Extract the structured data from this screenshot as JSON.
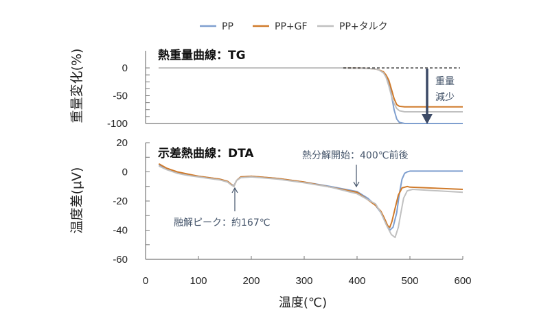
{
  "chart_data": [
    {
      "type": "line",
      "title": "熱重量曲線：TG",
      "ylabel": "重量変化(%)",
      "xlim": [
        0,
        600
      ],
      "ylim": [
        -100,
        0
      ],
      "yticks": [
        0,
        -50,
        -100
      ],
      "legend_position": "top",
      "series": [
        {
          "name": "PP",
          "color": "#7f9fcf",
          "points": [
            [
              25,
              0
            ],
            [
              100,
              0
            ],
            [
              200,
              0
            ],
            [
              300,
              0
            ],
            [
              370,
              0
            ],
            [
              410,
              -0.5
            ],
            [
              430,
              -1.5
            ],
            [
              440,
              -3
            ],
            [
              450,
              -8
            ],
            [
              455,
              -15
            ],
            [
              460,
              -28
            ],
            [
              465,
              -48
            ],
            [
              470,
              -75
            ],
            [
              475,
              -92
            ],
            [
              480,
              -98
            ],
            [
              490,
              -100
            ],
            [
              600,
              -100
            ]
          ]
        },
        {
          "name": "PP+GF",
          "color": "#d07a2a",
          "points": [
            [
              25,
              0
            ],
            [
              100,
              0
            ],
            [
              200,
              0
            ],
            [
              300,
              0
            ],
            [
              370,
              0
            ],
            [
              410,
              -0.5
            ],
            [
              430,
              -1.5
            ],
            [
              440,
              -3
            ],
            [
              450,
              -7
            ],
            [
              455,
              -13
            ],
            [
              460,
              -22
            ],
            [
              465,
              -38
            ],
            [
              470,
              -55
            ],
            [
              475,
              -66
            ],
            [
              480,
              -69
            ],
            [
              490,
              -70
            ],
            [
              600,
              -70
            ]
          ]
        },
        {
          "name": "PP+タルク",
          "color": "#c0c0c0",
          "points": [
            [
              25,
              0
            ],
            [
              100,
              0
            ],
            [
              200,
              0
            ],
            [
              300,
              0
            ],
            [
              370,
              0
            ],
            [
              410,
              -0.5
            ],
            [
              430,
              -1.5
            ],
            [
              440,
              -3
            ],
            [
              450,
              -9
            ],
            [
              455,
              -17
            ],
            [
              460,
              -32
            ],
            [
              465,
              -50
            ],
            [
              470,
              -64
            ],
            [
              475,
              -73
            ],
            [
              480,
              -77
            ],
            [
              490,
              -79
            ],
            [
              600,
              -79
            ]
          ]
        }
      ],
      "annotations": {
        "loss_label_1": "重量",
        "loss_label_2": "減少"
      }
    },
    {
      "type": "line",
      "title": "示差熱曲線：DTA",
      "xlabel": "温度(℃)",
      "ylabel": "温度差(μV)",
      "xlim": [
        0,
        600
      ],
      "ylim": [
        -60,
        20
      ],
      "xticks": [
        0,
        100,
        200,
        300,
        400,
        500,
        600
      ],
      "yticks": [
        20,
        0,
        -20,
        -40,
        -60
      ],
      "series": [
        {
          "name": "PP",
          "color": "#7f9fcf",
          "points": [
            [
              25,
              5
            ],
            [
              40,
              2
            ],
            [
              60,
              -0.5
            ],
            [
              80,
              -2
            ],
            [
              100,
              -3
            ],
            [
              120,
              -4
            ],
            [
              140,
              -5
            ],
            [
              155,
              -6.5
            ],
            [
              162,
              -8.5
            ],
            [
              167,
              -9.5
            ],
            [
              172,
              -6
            ],
            [
              180,
              -3.5
            ],
            [
              200,
              -3
            ],
            [
              250,
              -4.5
            ],
            [
              300,
              -7
            ],
            [
              350,
              -10
            ],
            [
              400,
              -13.5
            ],
            [
              420,
              -18
            ],
            [
              435,
              -23
            ],
            [
              445,
              -28
            ],
            [
              455,
              -35
            ],
            [
              462,
              -40
            ],
            [
              468,
              -38
            ],
            [
              475,
              -28
            ],
            [
              480,
              -15
            ],
            [
              485,
              -5
            ],
            [
              490,
              -1
            ],
            [
              495,
              0
            ],
            [
              500,
              0.5
            ],
            [
              600,
              0.5
            ]
          ]
        },
        {
          "name": "PP+GF",
          "color": "#d07a2a",
          "points": [
            [
              25,
              5.5
            ],
            [
              40,
              2.5
            ],
            [
              60,
              0
            ],
            [
              80,
              -1.5
            ],
            [
              100,
              -3
            ],
            [
              120,
              -4
            ],
            [
              140,
              -5
            ],
            [
              155,
              -6.5
            ],
            [
              162,
              -8.5
            ],
            [
              167,
              -10
            ],
            [
              172,
              -6
            ],
            [
              180,
              -3.5
            ],
            [
              200,
              -3
            ],
            [
              250,
              -4.5
            ],
            [
              300,
              -7
            ],
            [
              350,
              -10.5
            ],
            [
              400,
              -14
            ],
            [
              420,
              -19
            ],
            [
              435,
              -23
            ],
            [
              445,
              -27
            ],
            [
              452,
              -32
            ],
            [
              458,
              -37
            ],
            [
              462,
              -38
            ],
            [
              466,
              -34
            ],
            [
              472,
              -25
            ],
            [
              478,
              -16
            ],
            [
              485,
              -11
            ],
            [
              495,
              -10
            ],
            [
              500,
              -10.5
            ],
            [
              600,
              -12
            ]
          ]
        },
        {
          "name": "PP+タルク",
          "color": "#c0c0c0",
          "points": [
            [
              25,
              4
            ],
            [
              40,
              1.5
            ],
            [
              60,
              -1
            ],
            [
              80,
              -2.5
            ],
            [
              100,
              -3.5
            ],
            [
              120,
              -4.5
            ],
            [
              140,
              -5.5
            ],
            [
              155,
              -7
            ],
            [
              162,
              -9
            ],
            [
              167,
              -10
            ],
            [
              172,
              -6
            ],
            [
              180,
              -4
            ],
            [
              200,
              -3.5
            ],
            [
              250,
              -5
            ],
            [
              300,
              -7.5
            ],
            [
              350,
              -10.5
            ],
            [
              400,
              -15
            ],
            [
              420,
              -19
            ],
            [
              435,
              -22
            ],
            [
              445,
              -28
            ],
            [
              455,
              -36
            ],
            [
              465,
              -43
            ],
            [
              472,
              -45
            ],
            [
              478,
              -38
            ],
            [
              483,
              -28
            ],
            [
              488,
              -18
            ],
            [
              495,
              -13
            ],
            [
              505,
              -12
            ],
            [
              600,
              -14
            ]
          ]
        }
      ],
      "annotations": {
        "melting": "融解ピーク：約167℃",
        "decomposition": "熱分解開始：400℃前後"
      }
    }
  ]
}
